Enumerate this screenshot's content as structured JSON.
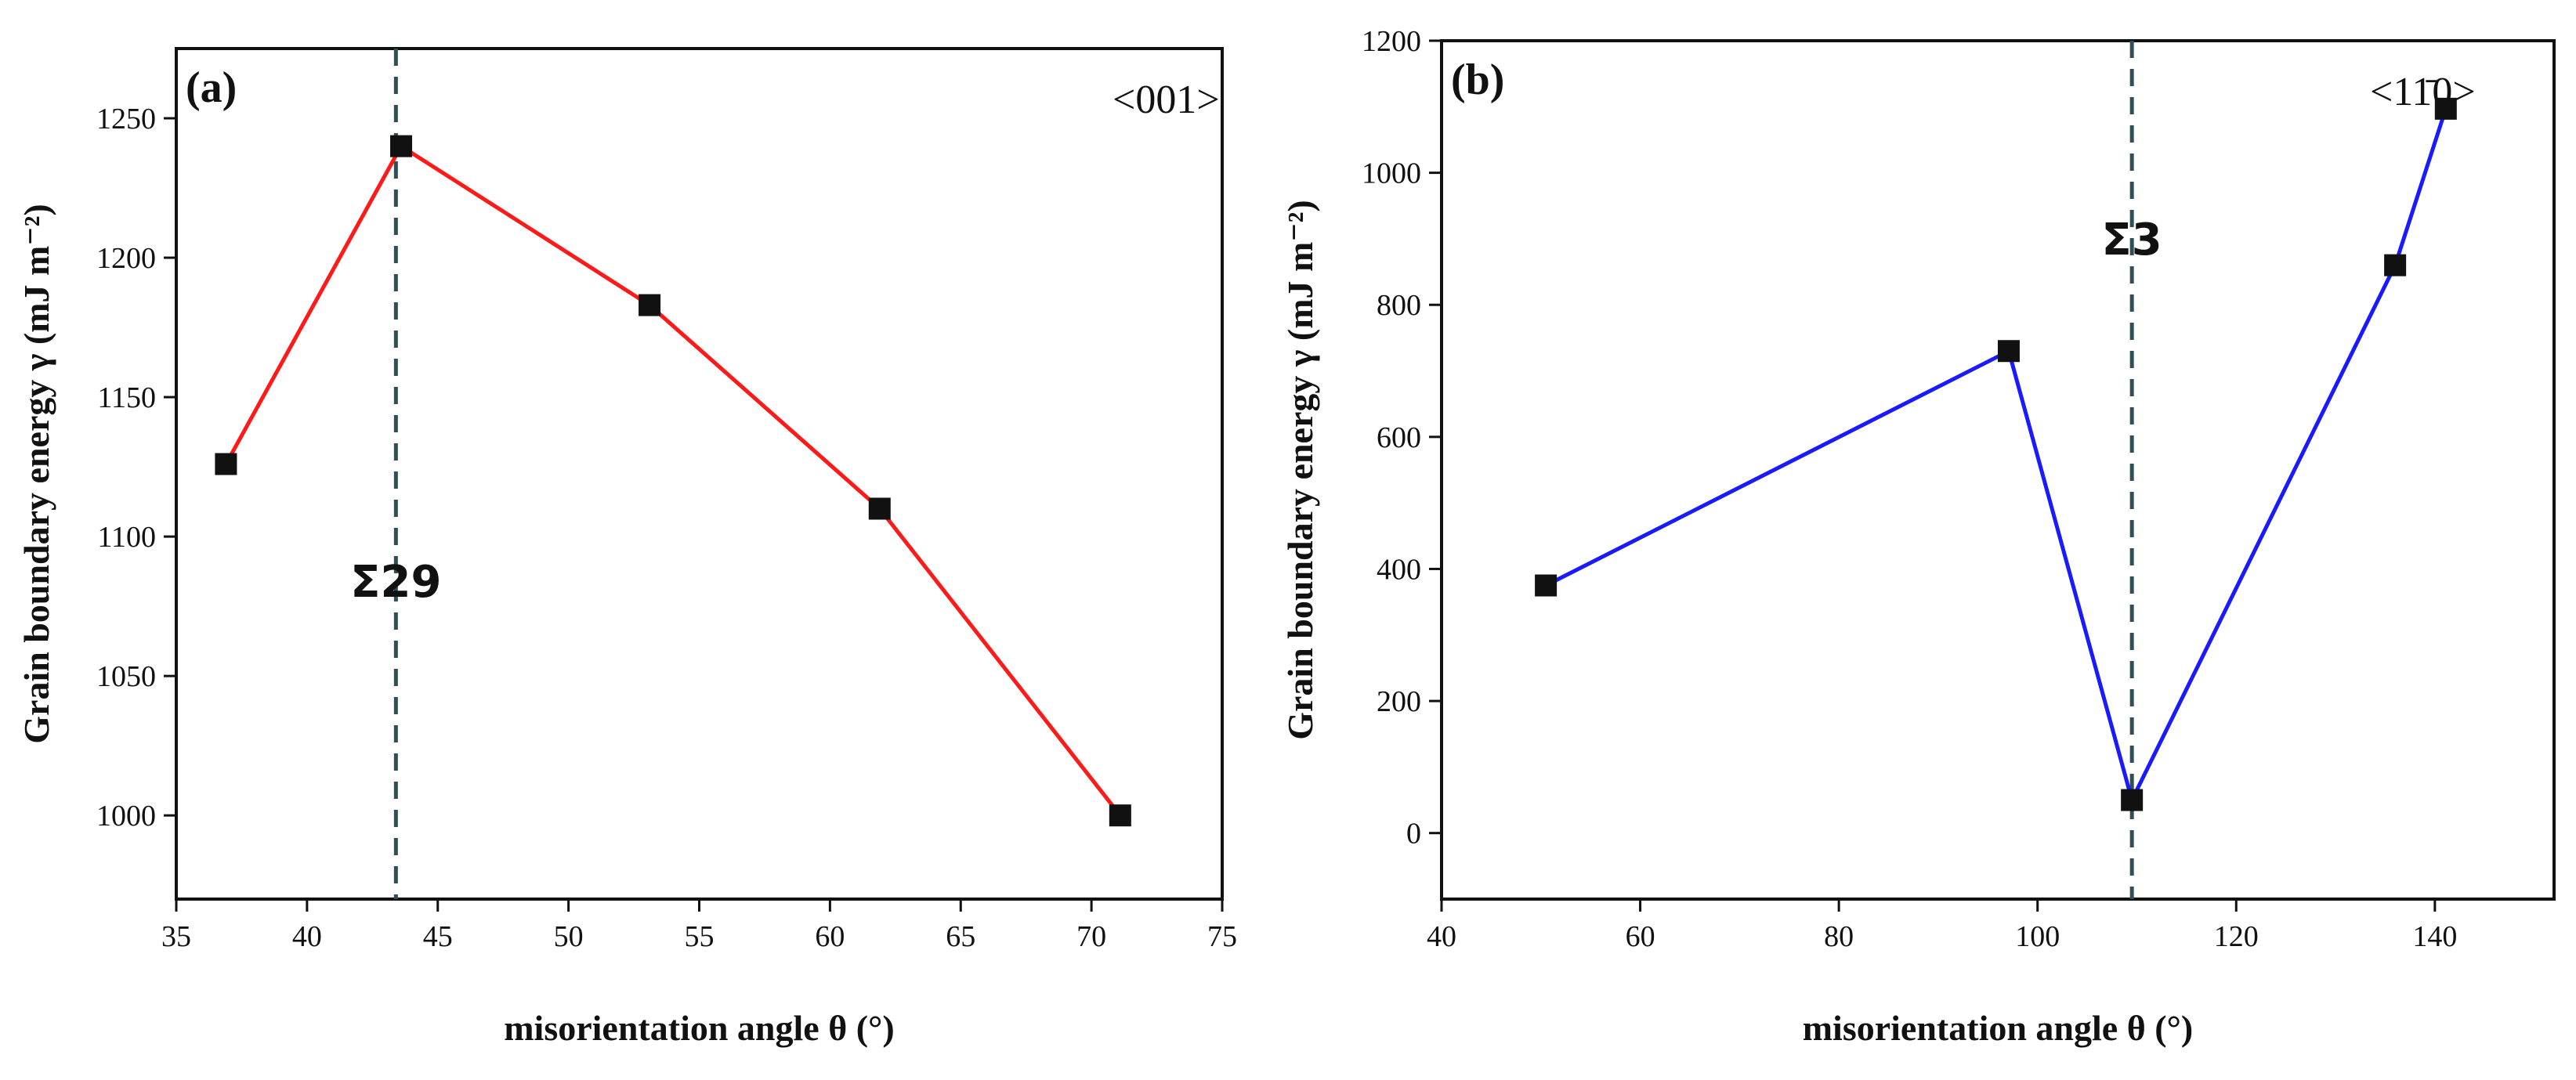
{
  "chart_data": [
    {
      "type": "line",
      "panel_label": "(a)",
      "orientation_label": "<001>",
      "xlabel": "misorientation angle θ (°)",
      "ylabel": "Grain boundary energy γ (mJ m⁻²)",
      "xlim": [
        35,
        75
      ],
      "ylim": [
        970,
        1275
      ],
      "xticks": [
        35,
        40,
        45,
        50,
        55,
        60,
        65,
        70,
        75
      ],
      "yticks": [
        1000,
        1050,
        1100,
        1150,
        1200,
        1250
      ],
      "series": [
        {
          "name": "<001>",
          "color": "#ff1a1a",
          "x": [
            36.9,
            43.6,
            53.1,
            61.9,
            71.1
          ],
          "y": [
            1126,
            1240,
            1183,
            1110,
            1000
          ]
        }
      ],
      "annotation": {
        "label": "Σ29",
        "x": 43.4
      }
    },
    {
      "type": "line",
      "panel_label": "(b)",
      "orientation_label": "<11̄0>",
      "xlabel": "misorientation angle θ (°)",
      "ylabel": "Grain boundary energy γ (mJ m⁻²)",
      "xlim": [
        40,
        152
      ],
      "ylim": [
        -100,
        1200
      ],
      "xticks": [
        40,
        60,
        80,
        100,
        120,
        140
      ],
      "yticks": [
        0,
        200,
        400,
        600,
        800,
        1000,
        1200
      ],
      "series": [
        {
          "name": "<11̄0>",
          "color": "#1a1aff",
          "x": [
            50.5,
            97.1,
            109.5,
            136.0,
            141.1
          ],
          "y": [
            375,
            730,
            50,
            860,
            1097
          ]
        }
      ],
      "annotation": {
        "label": "Σ3",
        "x": 109.5
      }
    }
  ]
}
